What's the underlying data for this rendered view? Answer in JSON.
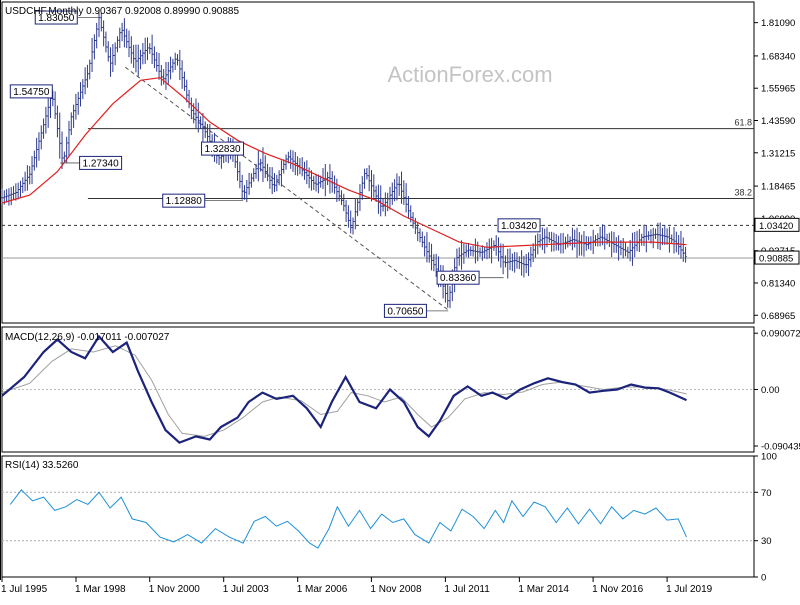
{
  "chart_data": {
    "type": "line",
    "chart_kind": "monthly OHLC price chart with 55-period SMA, MACD and RSI indicator panels",
    "watermark": "ActionForex.com",
    "main": {
      "title": "USDCHF,Monthly  0.90367 0.92008 0.89990 0.90885",
      "ylim": [
        0.66,
        1.89
      ],
      "y_ticks": [
        "1.81090",
        "1.68340",
        "1.55965",
        "1.43590",
        "1.31215",
        "1.18465",
        "1.06090",
        "0.93715",
        "0.81340",
        "0.68965"
      ],
      "current_price": "0.90885",
      "current_price_value": 0.90885,
      "resistance": {
        "label": "1.03420",
        "value": 1.0342
      },
      "fib_levels": [
        {
          "label": "61.8",
          "value": 1.405
        },
        {
          "label": "38.2",
          "value": 1.137
        }
      ],
      "trendline": [
        [
          1999.95,
          1.64
        ],
        [
          2011.6,
          0.71
        ]
      ],
      "annotations": [
        {
          "label": "1.83050",
          "x": 1999.0,
          "y": 1.8305,
          "box_x": 1996.7,
          "box_y": 1.8305
        },
        {
          "label": "1.54750",
          "x": 1997.0,
          "y": 1.5475,
          "box_x": 1995.8,
          "box_y": 1.5475
        },
        {
          "label": "1.27340",
          "x": 1997.6,
          "y": 1.2734,
          "box_x": 1998.3,
          "box_y": 1.2734
        },
        {
          "label": "1.32830",
          "x": 2003.5,
          "y": 1.3283,
          "box_x": 2002.7,
          "box_y": 1.3283
        },
        {
          "label": "1.12880",
          "x": 2004.2,
          "y": 1.1288,
          "box_x": 2001.3,
          "box_y": 1.1288
        },
        {
          "label": "0.70650",
          "x": 2011.6,
          "y": 0.7065,
          "box_x": 2009.3,
          "box_y": 0.7065
        },
        {
          "label": "0.83360",
          "x": 2013.6,
          "y": 0.8336,
          "box_x": 2011.2,
          "box_y": 0.8336
        },
        {
          "label": "1.03420",
          "x": 2015.0,
          "y": 1.0342,
          "box_x": 2013.4,
          "box_y": 1.0342
        }
      ],
      "price_path": [
        [
          1995.5,
          1.14
        ],
        [
          1996.0,
          1.16
        ],
        [
          1996.5,
          1.23
        ],
        [
          1997.0,
          1.42
        ],
        [
          1997.3,
          1.54
        ],
        [
          1997.7,
          1.27
        ],
        [
          1998.0,
          1.45
        ],
        [
          1998.6,
          1.62
        ],
        [
          1999.0,
          1.83
        ],
        [
          1999.4,
          1.65
        ],
        [
          1999.8,
          1.79
        ],
        [
          2000.3,
          1.66
        ],
        [
          2000.8,
          1.72
        ],
        [
          2001.3,
          1.59
        ],
        [
          2001.8,
          1.68
        ],
        [
          2002.3,
          1.48
        ],
        [
          2002.8,
          1.4
        ],
        [
          2003.3,
          1.29
        ],
        [
          2003.8,
          1.33
        ],
        [
          2004.2,
          1.15
        ],
        [
          2004.8,
          1.28
        ],
        [
          2005.3,
          1.18
        ],
        [
          2005.8,
          1.3
        ],
        [
          2006.3,
          1.25
        ],
        [
          2006.8,
          1.19
        ],
        [
          2007.3,
          1.22
        ],
        [
          2007.8,
          1.12
        ],
        [
          2008.1,
          1.02
        ],
        [
          2008.6,
          1.24
        ],
        [
          2009.2,
          1.1
        ],
        [
          2009.8,
          1.2
        ],
        [
          2010.3,
          1.05
        ],
        [
          2010.8,
          0.94
        ],
        [
          2011.3,
          0.84
        ],
        [
          2011.6,
          0.74
        ],
        [
          2011.9,
          0.91
        ],
        [
          2012.3,
          0.94
        ],
        [
          2012.8,
          0.93
        ],
        [
          2013.3,
          0.96
        ],
        [
          2013.6,
          0.89
        ],
        [
          2014.0,
          0.9
        ],
        [
          2014.4,
          0.88
        ],
        [
          2014.8,
          0.97
        ],
        [
          2015.1,
          0.99
        ],
        [
          2015.6,
          0.96
        ],
        [
          2016.1,
          0.98
        ],
        [
          2016.6,
          0.96
        ],
        [
          2017.1,
          0.99
        ],
        [
          2017.6,
          0.96
        ],
        [
          2018.1,
          0.93
        ],
        [
          2018.6,
          0.99
        ],
        [
          2019.1,
          1.0
        ],
        [
          2019.5,
          0.99
        ],
        [
          2019.8,
          0.97
        ],
        [
          2020.0,
          0.94
        ],
        [
          2020.2,
          0.91
        ]
      ],
      "sma_path": [
        [
          1995.5,
          1.12
        ],
        [
          1996.5,
          1.15
        ],
        [
          1997.5,
          1.24
        ],
        [
          1998.5,
          1.38
        ],
        [
          1999.5,
          1.5
        ],
        [
          2000.5,
          1.59
        ],
        [
          2001.2,
          1.6
        ],
        [
          2002.0,
          1.53
        ],
        [
          2003.0,
          1.43
        ],
        [
          2004.0,
          1.36
        ],
        [
          2005.0,
          1.31
        ],
        [
          2006.0,
          1.27
        ],
        [
          2007.0,
          1.22
        ],
        [
          2008.0,
          1.17
        ],
        [
          2009.0,
          1.13
        ],
        [
          2010.0,
          1.07
        ],
        [
          2011.0,
          1.02
        ],
        [
          2012.0,
          0.97
        ],
        [
          2013.0,
          0.95
        ],
        [
          2014.0,
          0.955
        ],
        [
          2015.0,
          0.96
        ],
        [
          2016.0,
          0.965
        ],
        [
          2017.0,
          0.97
        ],
        [
          2018.0,
          0.97
        ],
        [
          2019.0,
          0.97
        ],
        [
          2020.2,
          0.96
        ]
      ]
    },
    "macd": {
      "label": "MACD(12,26,9) -0.017011 -0.007027",
      "ylim": [
        -0.1,
        0.1
      ],
      "y_ticks": [
        "0.090072",
        "0.00",
        "-0.090435"
      ],
      "macd_path": [
        [
          1995.5,
          -0.01
        ],
        [
          1996.3,
          0.02
        ],
        [
          1997.0,
          0.06
        ],
        [
          1997.5,
          0.08
        ],
        [
          1998.0,
          0.06
        ],
        [
          1998.5,
          0.05
        ],
        [
          1999.0,
          0.085
        ],
        [
          1999.5,
          0.06
        ],
        [
          2000.0,
          0.075
        ],
        [
          2000.4,
          0.03
        ],
        [
          2000.9,
          -0.02
        ],
        [
          2001.4,
          -0.065
        ],
        [
          2001.9,
          -0.085
        ],
        [
          2002.5,
          -0.075
        ],
        [
          2003.0,
          -0.08
        ],
        [
          2003.4,
          -0.06
        ],
        [
          2004.0,
          -0.045
        ],
        [
          2004.4,
          -0.02
        ],
        [
          2004.9,
          -0.005
        ],
        [
          2005.4,
          -0.015
        ],
        [
          2006.0,
          -0.01
        ],
        [
          2006.5,
          -0.03
        ],
        [
          2007.0,
          -0.06
        ],
        [
          2007.4,
          -0.02
        ],
        [
          2007.9,
          0.02
        ],
        [
          2008.4,
          -0.02
        ],
        [
          2009.0,
          -0.03
        ],
        [
          2009.5,
          0.0
        ],
        [
          2010.0,
          -0.02
        ],
        [
          2010.5,
          -0.06
        ],
        [
          2010.9,
          -0.075
        ],
        [
          2011.3,
          -0.05
        ],
        [
          2011.8,
          -0.01
        ],
        [
          2012.3,
          0.005
        ],
        [
          2012.8,
          -0.01
        ],
        [
          2013.2,
          -0.005
        ],
        [
          2013.7,
          -0.015
        ],
        [
          2014.2,
          0.0
        ],
        [
          2014.7,
          0.01
        ],
        [
          2015.2,
          0.018
        ],
        [
          2015.7,
          0.012
        ],
        [
          2016.2,
          0.008
        ],
        [
          2016.7,
          -0.005
        ],
        [
          2017.2,
          -0.002
        ],
        [
          2017.7,
          0.0
        ],
        [
          2018.2,
          0.008
        ],
        [
          2018.7,
          0.003
        ],
        [
          2019.2,
          0.002
        ],
        [
          2019.6,
          -0.005
        ],
        [
          2020.2,
          -0.017
        ]
      ],
      "signal_path": [
        [
          1995.5,
          -0.005
        ],
        [
          1996.5,
          0.01
        ],
        [
          1997.3,
          0.045
        ],
        [
          1998.0,
          0.065
        ],
        [
          1998.8,
          0.06
        ],
        [
          1999.6,
          0.07
        ],
        [
          2000.3,
          0.055
        ],
        [
          2000.9,
          0.015
        ],
        [
          2001.5,
          -0.04
        ],
        [
          2002.0,
          -0.07
        ],
        [
          2002.8,
          -0.075
        ],
        [
          2003.5,
          -0.065
        ],
        [
          2004.2,
          -0.045
        ],
        [
          2004.9,
          -0.02
        ],
        [
          2005.5,
          -0.012
        ],
        [
          2006.3,
          -0.018
        ],
        [
          2007.0,
          -0.04
        ],
        [
          2007.6,
          -0.035
        ],
        [
          2008.1,
          -0.005
        ],
        [
          2008.7,
          -0.01
        ],
        [
          2009.3,
          -0.02
        ],
        [
          2009.9,
          -0.012
        ],
        [
          2010.5,
          -0.04
        ],
        [
          2011.0,
          -0.06
        ],
        [
          2011.6,
          -0.045
        ],
        [
          2012.2,
          -0.015
        ],
        [
          2012.9,
          -0.005
        ],
        [
          2013.6,
          -0.008
        ],
        [
          2014.3,
          -0.004
        ],
        [
          2015.0,
          0.008
        ],
        [
          2015.7,
          0.012
        ],
        [
          2016.4,
          0.006
        ],
        [
          2017.2,
          0.0
        ],
        [
          2018.0,
          0.004
        ],
        [
          2018.8,
          0.004
        ],
        [
          2019.5,
          0.0
        ],
        [
          2020.2,
          -0.007
        ]
      ]
    },
    "rsi": {
      "label": "RSI(14) 33.5260",
      "ylim": [
        0,
        100
      ],
      "y_ticks": [
        "100",
        "70",
        "30",
        "0"
      ],
      "levels": [
        70,
        30
      ],
      "rsi_path": [
        [
          1995.8,
          60
        ],
        [
          1996.2,
          72
        ],
        [
          1996.6,
          63
        ],
        [
          1997.0,
          66
        ],
        [
          1997.4,
          55
        ],
        [
          1997.8,
          58
        ],
        [
          1998.2,
          64
        ],
        [
          1998.6,
          60
        ],
        [
          1999.0,
          70
        ],
        [
          1999.4,
          57
        ],
        [
          1999.8,
          66
        ],
        [
          2000.2,
          48
        ],
        [
          2000.7,
          45
        ],
        [
          2001.2,
          33
        ],
        [
          2001.7,
          29
        ],
        [
          2002.2,
          35
        ],
        [
          2002.7,
          28
        ],
        [
          2003.2,
          40
        ],
        [
          2003.7,
          33
        ],
        [
          2004.2,
          28
        ],
        [
          2004.6,
          46
        ],
        [
          2005.0,
          50
        ],
        [
          2005.4,
          42
        ],
        [
          2005.8,
          46
        ],
        [
          2006.2,
          38
        ],
        [
          2006.6,
          28
        ],
        [
          2006.9,
          24
        ],
        [
          2007.3,
          40
        ],
        [
          2007.6,
          58
        ],
        [
          2008.0,
          42
        ],
        [
          2008.4,
          55
        ],
        [
          2008.8,
          40
        ],
        [
          2009.2,
          52
        ],
        [
          2009.6,
          45
        ],
        [
          2010.0,
          48
        ],
        [
          2010.4,
          35
        ],
        [
          2010.9,
          28
        ],
        [
          2011.3,
          45
        ],
        [
          2011.7,
          38
        ],
        [
          2012.1,
          56
        ],
        [
          2012.5,
          50
        ],
        [
          2012.9,
          40
        ],
        [
          2013.3,
          55
        ],
        [
          2013.6,
          45
        ],
        [
          2013.9,
          63
        ],
        [
          2014.3,
          50
        ],
        [
          2014.7,
          62
        ],
        [
          2015.1,
          58
        ],
        [
          2015.5,
          45
        ],
        [
          2015.9,
          57
        ],
        [
          2016.3,
          44
        ],
        [
          2016.7,
          56
        ],
        [
          2017.1,
          44
        ],
        [
          2017.5,
          58
        ],
        [
          2017.9,
          48
        ],
        [
          2018.3,
          55
        ],
        [
          2018.7,
          52
        ],
        [
          2019.1,
          57
        ],
        [
          2019.5,
          47
        ],
        [
          2019.9,
          48
        ],
        [
          2020.2,
          33
        ]
      ]
    },
    "x_axis": {
      "ticks": [
        {
          "label": "1 Jul 1995",
          "value": 1995.5
        },
        {
          "label": "1 Mar 1998",
          "value": 1998.17
        },
        {
          "label": "1 Nov 2000",
          "value": 2000.83
        },
        {
          "label": "1 Jul 2003",
          "value": 2003.5
        },
        {
          "label": "1 Mar 2006",
          "value": 2006.17
        },
        {
          "label": "1 Nov 2008",
          "value": 2008.83
        },
        {
          "label": "1 Jul 2011",
          "value": 2011.5
        },
        {
          "label": "1 Mar 2014",
          "value": 2014.17
        },
        {
          "label": "1 Nov 2016",
          "value": 2016.83
        },
        {
          "label": "1 Jul 2019",
          "value": 2019.5
        }
      ],
      "xlim": [
        1995.5,
        2022.6
      ]
    },
    "colors": {
      "bars": "#2d3a8c",
      "sma": "#e02020",
      "macd": "#1b237a",
      "macd_signal": "#a0a0a0",
      "rsi": "#1e90d8",
      "level_line": "#555555",
      "watermark": "#c4c4c4",
      "price_box": "#2d3a8c"
    }
  }
}
